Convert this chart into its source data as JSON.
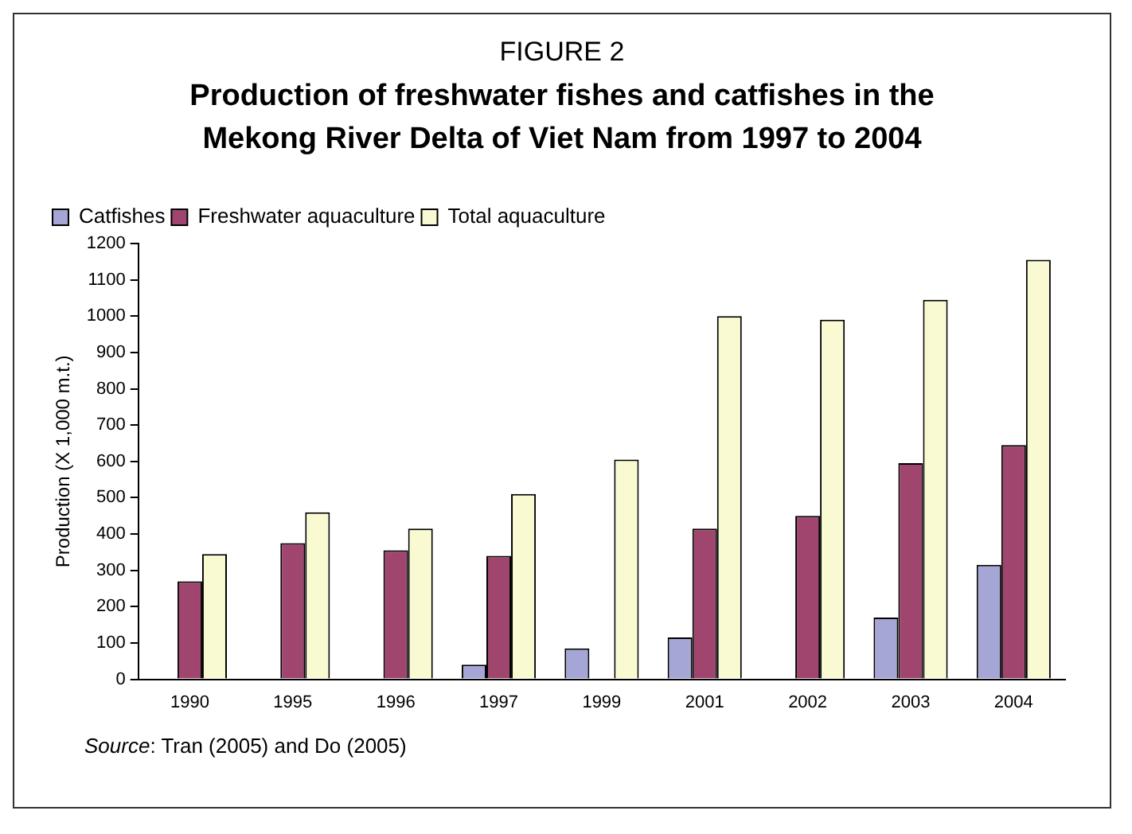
{
  "chart_data": {
    "type": "bar",
    "title": "FIGURE 2",
    "subtitle": "Production of freshwater fishes and catfishes in the Mekong River Delta of Viet Nam from 1997 to 2004",
    "ylabel": "Production (X 1,000 m.t.)",
    "annotations": [
      "Source: Tran (2005) and Do (2005)"
    ],
    "categories": [
      "1990",
      "1995",
      "1996",
      "1997",
      "1999",
      "2001",
      "2002",
      "2003",
      "2004"
    ],
    "series": [
      {
        "name": "Catfishes",
        "color": "#a5a5d6",
        "values": [
          null,
          null,
          null,
          40,
          85,
          115,
          null,
          170,
          315
        ]
      },
      {
        "name": "Freshwater aquaculture",
        "color": "#a0456e",
        "values": [
          270,
          375,
          355,
          340,
          null,
          415,
          450,
          595,
          645
        ]
      },
      {
        "name": "Total aquaculture",
        "color": "#fafad2",
        "values": [
          345,
          460,
          415,
          510,
          605,
          1000,
          990,
          1045,
          1155
        ]
      }
    ],
    "ylim": [
      0,
      1200
    ],
    "yticks": [
      0,
      100,
      200,
      300,
      400,
      500,
      600,
      700,
      800,
      900,
      1000,
      1100,
      1200
    ],
    "grid": false,
    "legend": "top left"
  }
}
